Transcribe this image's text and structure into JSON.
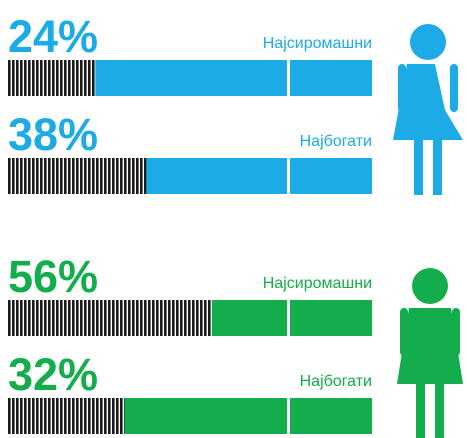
{
  "chart_data": [
    {
      "type": "bar",
      "categories": [
        "Најсиромашни",
        "Најбогати"
      ],
      "values": [
        24,
        38
      ],
      "value_labels": [
        "24%",
        "38%"
      ],
      "color": "#1cabe6",
      "xlim": [
        0,
        100
      ]
    },
    {
      "type": "bar",
      "categories": [
        "Најсиромашни",
        "Најбогати"
      ],
      "values": [
        56,
        32
      ],
      "value_labels": [
        "56%",
        "32%"
      ],
      "color": "#13ad4b",
      "xlim": [
        0,
        100
      ]
    }
  ]
}
